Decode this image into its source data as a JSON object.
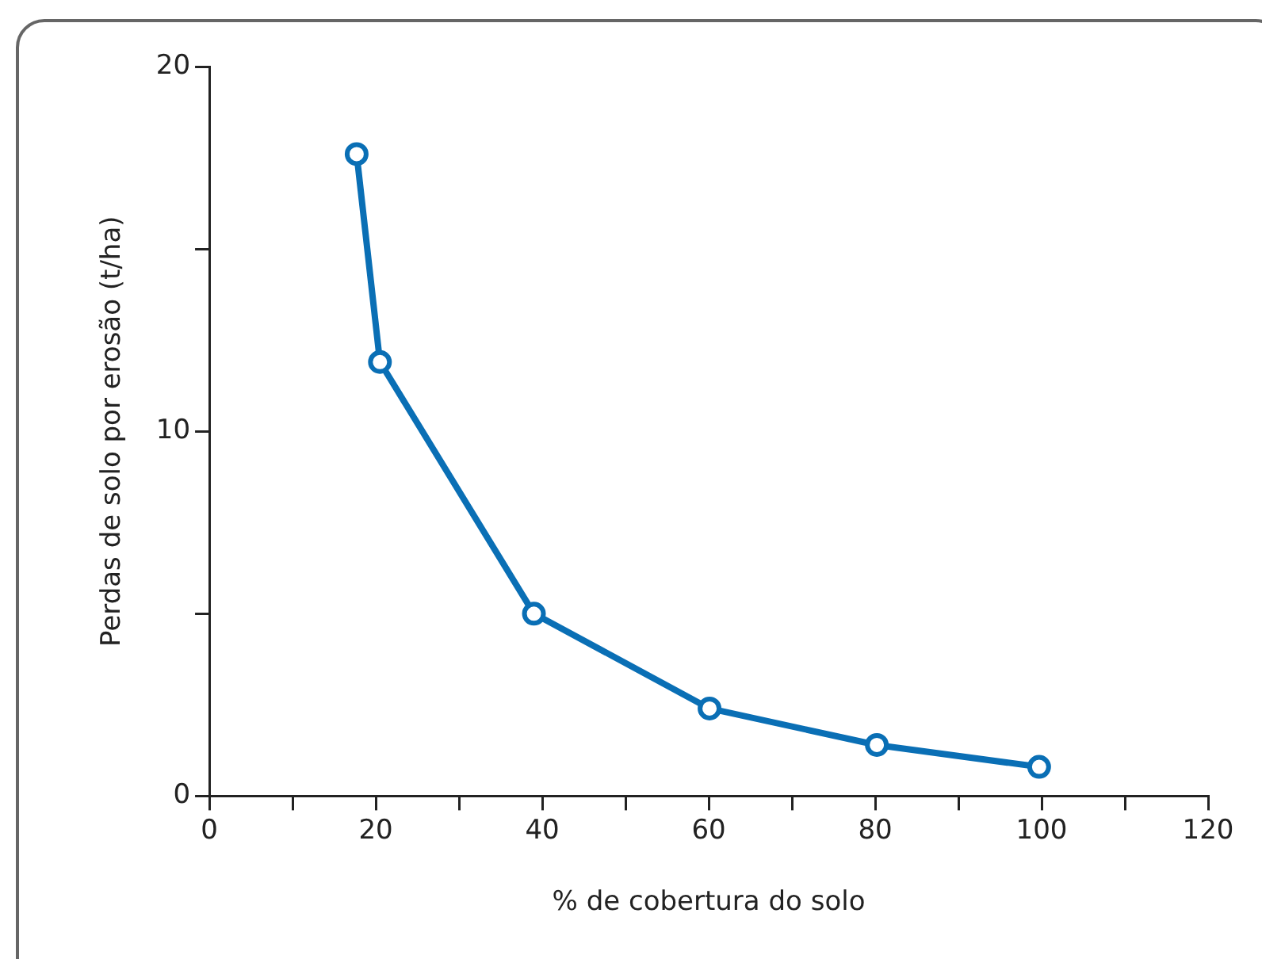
{
  "chart_data": {
    "type": "line",
    "xlabel": "% de cobertura do solo",
    "ylabel": "Perdas de solo por erosão (t/ha)",
    "x": [
      17.7,
      20.5,
      39,
      60.1,
      80.2,
      99.7
    ],
    "series": [
      {
        "color": "#0a6fb5",
        "values": [
          17.6,
          11.9,
          5.0,
          2.4,
          1.4,
          0.8
        ]
      }
    ],
    "xlim": [
      0,
      120
    ],
    "xticks": [
      0,
      {
        "value": 10,
        "label": null
      },
      20,
      {
        "value": 30,
        "label": null
      },
      40,
      {
        "value": 50,
        "label": null
      },
      60,
      {
        "value": 70,
        "label": null
      },
      80,
      {
        "value": 90,
        "label": null
      },
      100,
      {
        "value": 110,
        "label": null
      },
      120
    ],
    "ylim": [
      0,
      20
    ],
    "yticks": [
      0,
      {
        "value": 5,
        "label": null
      },
      10,
      {
        "value": 15,
        "label": null
      },
      20
    ],
    "marker": "circle",
    "line_style": "solid",
    "legend": false
  }
}
